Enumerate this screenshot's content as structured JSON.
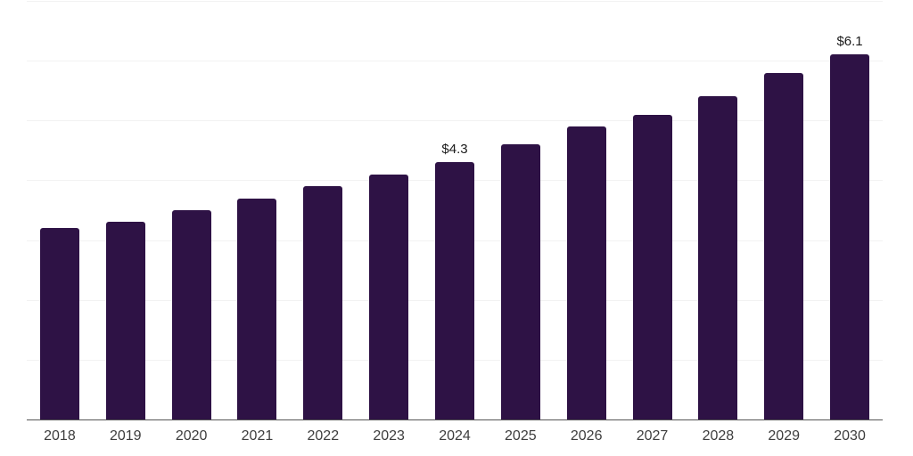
{
  "chart_data": {
    "type": "bar",
    "categories": [
      "2018",
      "2019",
      "2020",
      "2021",
      "2022",
      "2023",
      "2024",
      "2025",
      "2026",
      "2027",
      "2028",
      "2029",
      "2030"
    ],
    "values": [
      3.2,
      3.3,
      3.5,
      3.7,
      3.9,
      4.1,
      4.3,
      4.6,
      4.9,
      5.1,
      5.4,
      5.8,
      6.1
    ],
    "data_labels": [
      {
        "index": 6,
        "text": "$4.3"
      },
      {
        "index": 12,
        "text": "$6.1"
      }
    ],
    "title": "",
    "xlabel": "",
    "ylabel": "",
    "ylim": [
      0,
      7
    ],
    "grid_step": 1,
    "grid": true,
    "legend": "none",
    "colors": {
      "bar": "#2E1245",
      "gridline": "#F2F2F2",
      "axis": "#555555",
      "value_label": "#1A1A1A",
      "tick_label": "#3D3D3D",
      "background": "#FFFFFF"
    }
  }
}
